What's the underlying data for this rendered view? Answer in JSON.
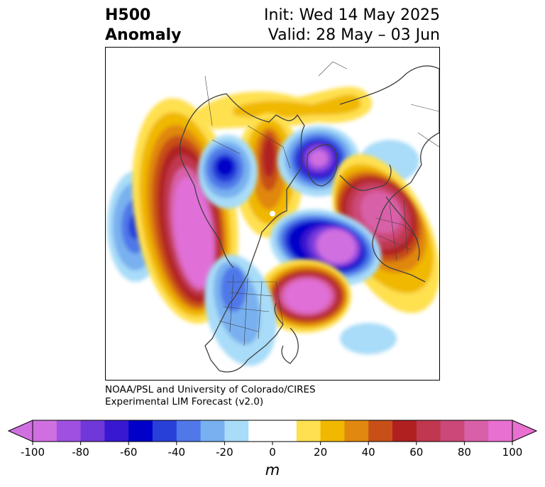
{
  "title": {
    "left_line1": "H500",
    "left_line2": "Anomaly",
    "right_line1": "Init: Wed 14 May 2025",
    "right_line2": "Valid: 28 May – 03 Jun"
  },
  "credit": {
    "line1": "NOAA/PSL and University of Colorado/CIRES",
    "line2": "Experimental LIM Forecast (v2.0)"
  },
  "colorbar": {
    "unit": "m",
    "ticks": [
      "-100",
      "-80",
      "-60",
      "-40",
      "-20",
      "0",
      "20",
      "40",
      "60",
      "80",
      "100"
    ],
    "colors": [
      "#d070e0",
      "#a050e0",
      "#7038d8",
      "#3818d0",
      "#0000c8",
      "#2840d8",
      "#5078e8",
      "#78b0f0",
      "#a8dcf8",
      "#ffffff",
      "#ffffff",
      "#ffe050",
      "#f0b800",
      "#e08810",
      "#c85018",
      "#b02020",
      "#c03850",
      "#cc4878",
      "#d860a8",
      "#e870d0"
    ],
    "extend_low": "#d070e0",
    "extend_high": "#e870d0"
  },
  "colors": {
    "coast": "#404040",
    "frame": "#000000"
  }
}
